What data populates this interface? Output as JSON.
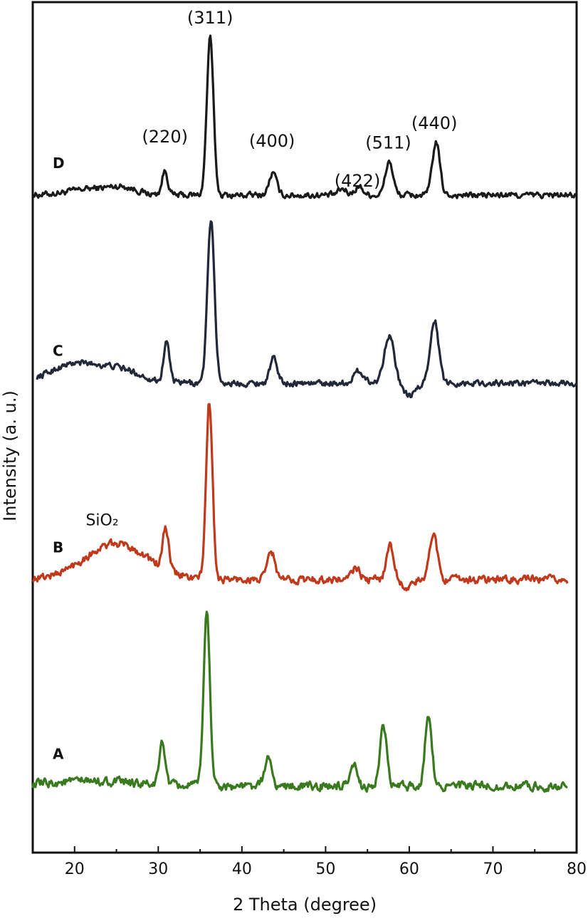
{
  "chart_data": {
    "type": "line",
    "title": "",
    "xlabel": "2 Theta (degree)",
    "ylabel": "Intensity (a. u.)",
    "xlim": [
      15,
      80
    ],
    "x_ticks": [
      "20",
      "30",
      "40",
      "50",
      "60",
      "70",
      "80"
    ],
    "y_ticks": [],
    "grid": false,
    "legend": "none",
    "y_scale_note": "stacked traces, arbitrary units (y values are relative offsets within the stacked plot, 0 at bottom, 100 at top)",
    "peak_labels": [
      {
        "text": "(220)",
        "x": 30.8
      },
      {
        "text": "(311)",
        "x": 36.2
      },
      {
        "text": "(400)",
        "x": 43.6
      },
      {
        "text": "(422)",
        "x": 53.8
      },
      {
        "text": "(511)",
        "x": 57.5
      },
      {
        "text": "(440)",
        "x": 63.0
      }
    ],
    "annotations": [
      {
        "text": "SiO₂",
        "x": 23.3
      }
    ],
    "series": [
      {
        "name": "D",
        "color": "#1a1a1a",
        "x_range": [
          15,
          80
        ],
        "baseline": 77.3,
        "noise": 0.55,
        "peaks": [
          [
            30.8,
            2.8,
            0.35
          ],
          [
            36.2,
            18.5,
            0.4
          ],
          [
            43.7,
            2.6,
            0.45
          ],
          [
            52.0,
            0.7,
            0.5
          ],
          [
            54.0,
            1.0,
            0.5
          ],
          [
            57.6,
            4.0,
            0.45
          ],
          [
            63.2,
            6.2,
            0.45
          ]
        ],
        "humps": [
          [
            22.5,
            0.8,
            3.0
          ],
          [
            26.0,
            0.6,
            1.5
          ]
        ]
      },
      {
        "name": "C",
        "color": "#22283a",
        "x_range": [
          15.5,
          80
        ],
        "baseline": 55.2,
        "noise": 0.55,
        "peaks": [
          [
            31.0,
            4.8,
            0.35
          ],
          [
            36.3,
            19.2,
            0.42
          ],
          [
            43.8,
            2.9,
            0.45
          ],
          [
            54.0,
            1.4,
            0.6
          ],
          [
            57.6,
            5.7,
            0.6
          ],
          [
            63.0,
            7.5,
            0.5
          ]
        ],
        "humps": [
          [
            20.0,
            2.2,
            3.0
          ],
          [
            25.5,
            1.4,
            2.5
          ],
          [
            60.0,
            -1.5,
            0.8
          ]
        ]
      },
      {
        "name": "B",
        "color": "#c0391b",
        "x_range": [
          15,
          79
        ],
        "baseline": 32.1,
        "noise": 0.7,
        "peaks": [
          [
            30.9,
            4.8,
            0.35
          ],
          [
            36.1,
            20.8,
            0.38
          ],
          [
            43.5,
            3.3,
            0.45
          ],
          [
            53.6,
            1.4,
            0.45
          ],
          [
            57.7,
            4.0,
            0.45
          ],
          [
            62.9,
            5.6,
            0.45
          ]
        ],
        "humps": [
          [
            25.0,
            4.2,
            3.8
          ],
          [
            59.8,
            -1.0,
            0.6
          ]
        ]
      },
      {
        "name": "A",
        "color": "#3a7a1e",
        "x_range": [
          15,
          79
        ],
        "baseline": 7.8,
        "noise": 0.8,
        "peaks": [
          [
            30.5,
            5.0,
            0.35
          ],
          [
            35.8,
            20.4,
            0.38
          ],
          [
            43.1,
            3.4,
            0.4
          ],
          [
            53.4,
            2.4,
            0.35
          ],
          [
            56.9,
            7.0,
            0.4
          ],
          [
            62.3,
            8.6,
            0.4
          ]
        ],
        "humps": [
          [
            22.0,
            0.6,
            5.0
          ]
        ]
      }
    ]
  }
}
